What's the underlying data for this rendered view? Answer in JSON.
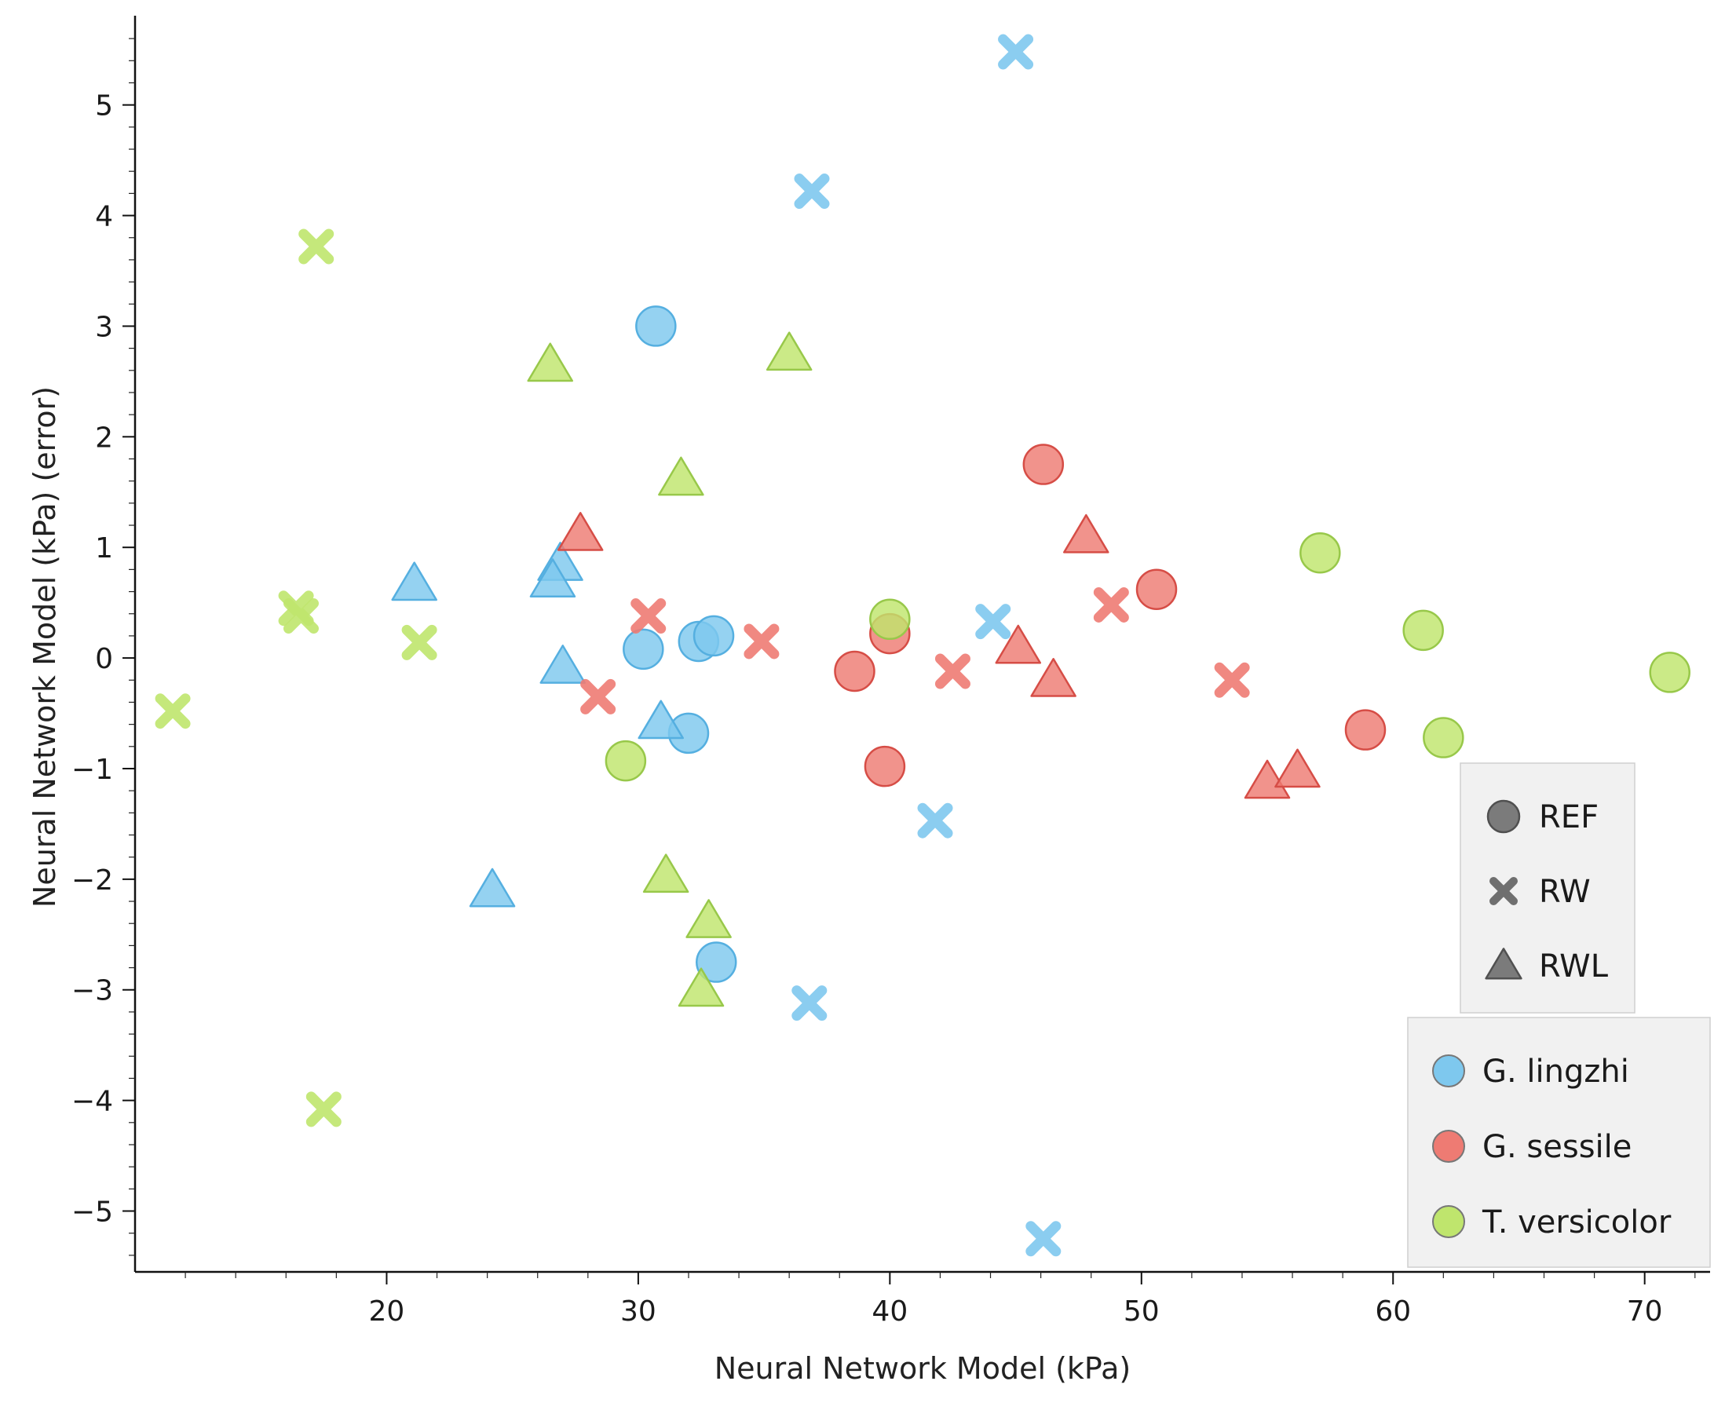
{
  "chart_data": {
    "type": "scatter",
    "title": "",
    "xlabel": "Neural Network Model (kPa)",
    "ylabel": "Neural Network Model (kPa) (error)",
    "xlim": [
      10,
      72.6
    ],
    "ylim": [
      -5.55,
      5.75
    ],
    "x_ticks": [
      20,
      30,
      40,
      50,
      60,
      70
    ],
    "y_ticks": [
      -5,
      -4,
      -3,
      -2,
      -1,
      0,
      1,
      2,
      3,
      4,
      5
    ],
    "grid": false,
    "marker_legend": {
      "position": "right",
      "entries": [
        {
          "label": "REF",
          "marker": "circle"
        },
        {
          "label": "RW",
          "marker": "x"
        },
        {
          "label": "RWL",
          "marker": "triangle"
        }
      ]
    },
    "species_legend": {
      "position": "bottom-right",
      "entries": [
        {
          "label": "G. lingzhi",
          "color": "#7ec8ee"
        },
        {
          "label": "G. sessile",
          "color": "#ee7b73"
        },
        {
          "label": "T. versicolor",
          "color": "#bfe56d"
        }
      ]
    },
    "series": [
      {
        "name": "G. lingzhi",
        "color": "#7ec8ee",
        "edge": "#55afe0",
        "points": [
          {
            "x": 30.7,
            "y": 3.0,
            "marker": "REF"
          },
          {
            "x": 30.2,
            "y": 0.08,
            "marker": "REF"
          },
          {
            "x": 32.4,
            "y": 0.15,
            "marker": "REF"
          },
          {
            "x": 33.0,
            "y": 0.2,
            "marker": "REF"
          },
          {
            "x": 32.0,
            "y": -0.68,
            "marker": "REF"
          },
          {
            "x": 33.1,
            "y": -2.75,
            "marker": "REF"
          },
          {
            "x": 45.0,
            "y": 5.48,
            "marker": "RW"
          },
          {
            "x": 36.9,
            "y": 4.22,
            "marker": "RW"
          },
          {
            "x": 44.1,
            "y": 0.33,
            "marker": "RW"
          },
          {
            "x": 41.8,
            "y": -1.47,
            "marker": "RW"
          },
          {
            "x": 36.8,
            "y": -3.12,
            "marker": "RW"
          },
          {
            "x": 46.1,
            "y": -5.25,
            "marker": "RW"
          },
          {
            "x": 21.1,
            "y": 0.67,
            "marker": "RWL"
          },
          {
            "x": 26.9,
            "y": 0.85,
            "marker": "RWL"
          },
          {
            "x": 26.6,
            "y": 0.7,
            "marker": "RWL"
          },
          {
            "x": 27.0,
            "y": -0.08,
            "marker": "RWL"
          },
          {
            "x": 30.9,
            "y": -0.58,
            "marker": "RWL"
          },
          {
            "x": 24.2,
            "y": -2.1,
            "marker": "RWL"
          }
        ]
      },
      {
        "name": "G. sessile",
        "color": "#ee7b73",
        "edge": "#d64d46",
        "points": [
          {
            "x": 46.1,
            "y": 1.75,
            "marker": "REF"
          },
          {
            "x": 50.6,
            "y": 0.62,
            "marker": "REF"
          },
          {
            "x": 40.0,
            "y": 0.22,
            "marker": "REF"
          },
          {
            "x": 38.6,
            "y": -0.12,
            "marker": "REF"
          },
          {
            "x": 39.8,
            "y": -0.98,
            "marker": "REF"
          },
          {
            "x": 58.9,
            "y": -0.65,
            "marker": "REF"
          },
          {
            "x": 30.4,
            "y": 0.38,
            "marker": "RW"
          },
          {
            "x": 34.9,
            "y": 0.15,
            "marker": "RW"
          },
          {
            "x": 28.4,
            "y": -0.35,
            "marker": "RW"
          },
          {
            "x": 42.5,
            "y": -0.12,
            "marker": "RW"
          },
          {
            "x": 48.8,
            "y": 0.48,
            "marker": "RW"
          },
          {
            "x": 53.6,
            "y": -0.2,
            "marker": "RW"
          },
          {
            "x": 27.7,
            "y": 1.12,
            "marker": "RWL"
          },
          {
            "x": 47.8,
            "y": 1.1,
            "marker": "RWL"
          },
          {
            "x": 45.1,
            "y": 0.1,
            "marker": "RWL"
          },
          {
            "x": 46.5,
            "y": -0.2,
            "marker": "RWL"
          },
          {
            "x": 55.0,
            "y": -1.12,
            "marker": "RWL"
          },
          {
            "x": 56.2,
            "y": -1.02,
            "marker": "RWL"
          }
        ]
      },
      {
        "name": "T. versicolor",
        "color": "#bfe56d",
        "edge": "#98c84a",
        "points": [
          {
            "x": 29.5,
            "y": -0.93,
            "marker": "REF"
          },
          {
            "x": 40.0,
            "y": 0.35,
            "marker": "REF"
          },
          {
            "x": 57.1,
            "y": 0.95,
            "marker": "REF"
          },
          {
            "x": 61.2,
            "y": 0.25,
            "marker": "REF"
          },
          {
            "x": 62.0,
            "y": -0.72,
            "marker": "REF"
          },
          {
            "x": 71.0,
            "y": -0.13,
            "marker": "REF"
          },
          {
            "x": 17.2,
            "y": 3.72,
            "marker": "RW"
          },
          {
            "x": 16.4,
            "y": 0.45,
            "marker": "RW"
          },
          {
            "x": 16.6,
            "y": 0.38,
            "marker": "RW"
          },
          {
            "x": 21.3,
            "y": 0.14,
            "marker": "RW"
          },
          {
            "x": 11.5,
            "y": -0.48,
            "marker": "RW"
          },
          {
            "x": 17.5,
            "y": -4.08,
            "marker": "RW"
          },
          {
            "x": 26.5,
            "y": 2.65,
            "marker": "RWL"
          },
          {
            "x": 36.0,
            "y": 2.75,
            "marker": "RWL"
          },
          {
            "x": 31.7,
            "y": 1.62,
            "marker": "RWL"
          },
          {
            "x": 31.1,
            "y": -1.97,
            "marker": "RWL"
          },
          {
            "x": 32.8,
            "y": -2.38,
            "marker": "RWL"
          },
          {
            "x": 32.5,
            "y": -3.0,
            "marker": "RWL"
          }
        ]
      }
    ]
  }
}
